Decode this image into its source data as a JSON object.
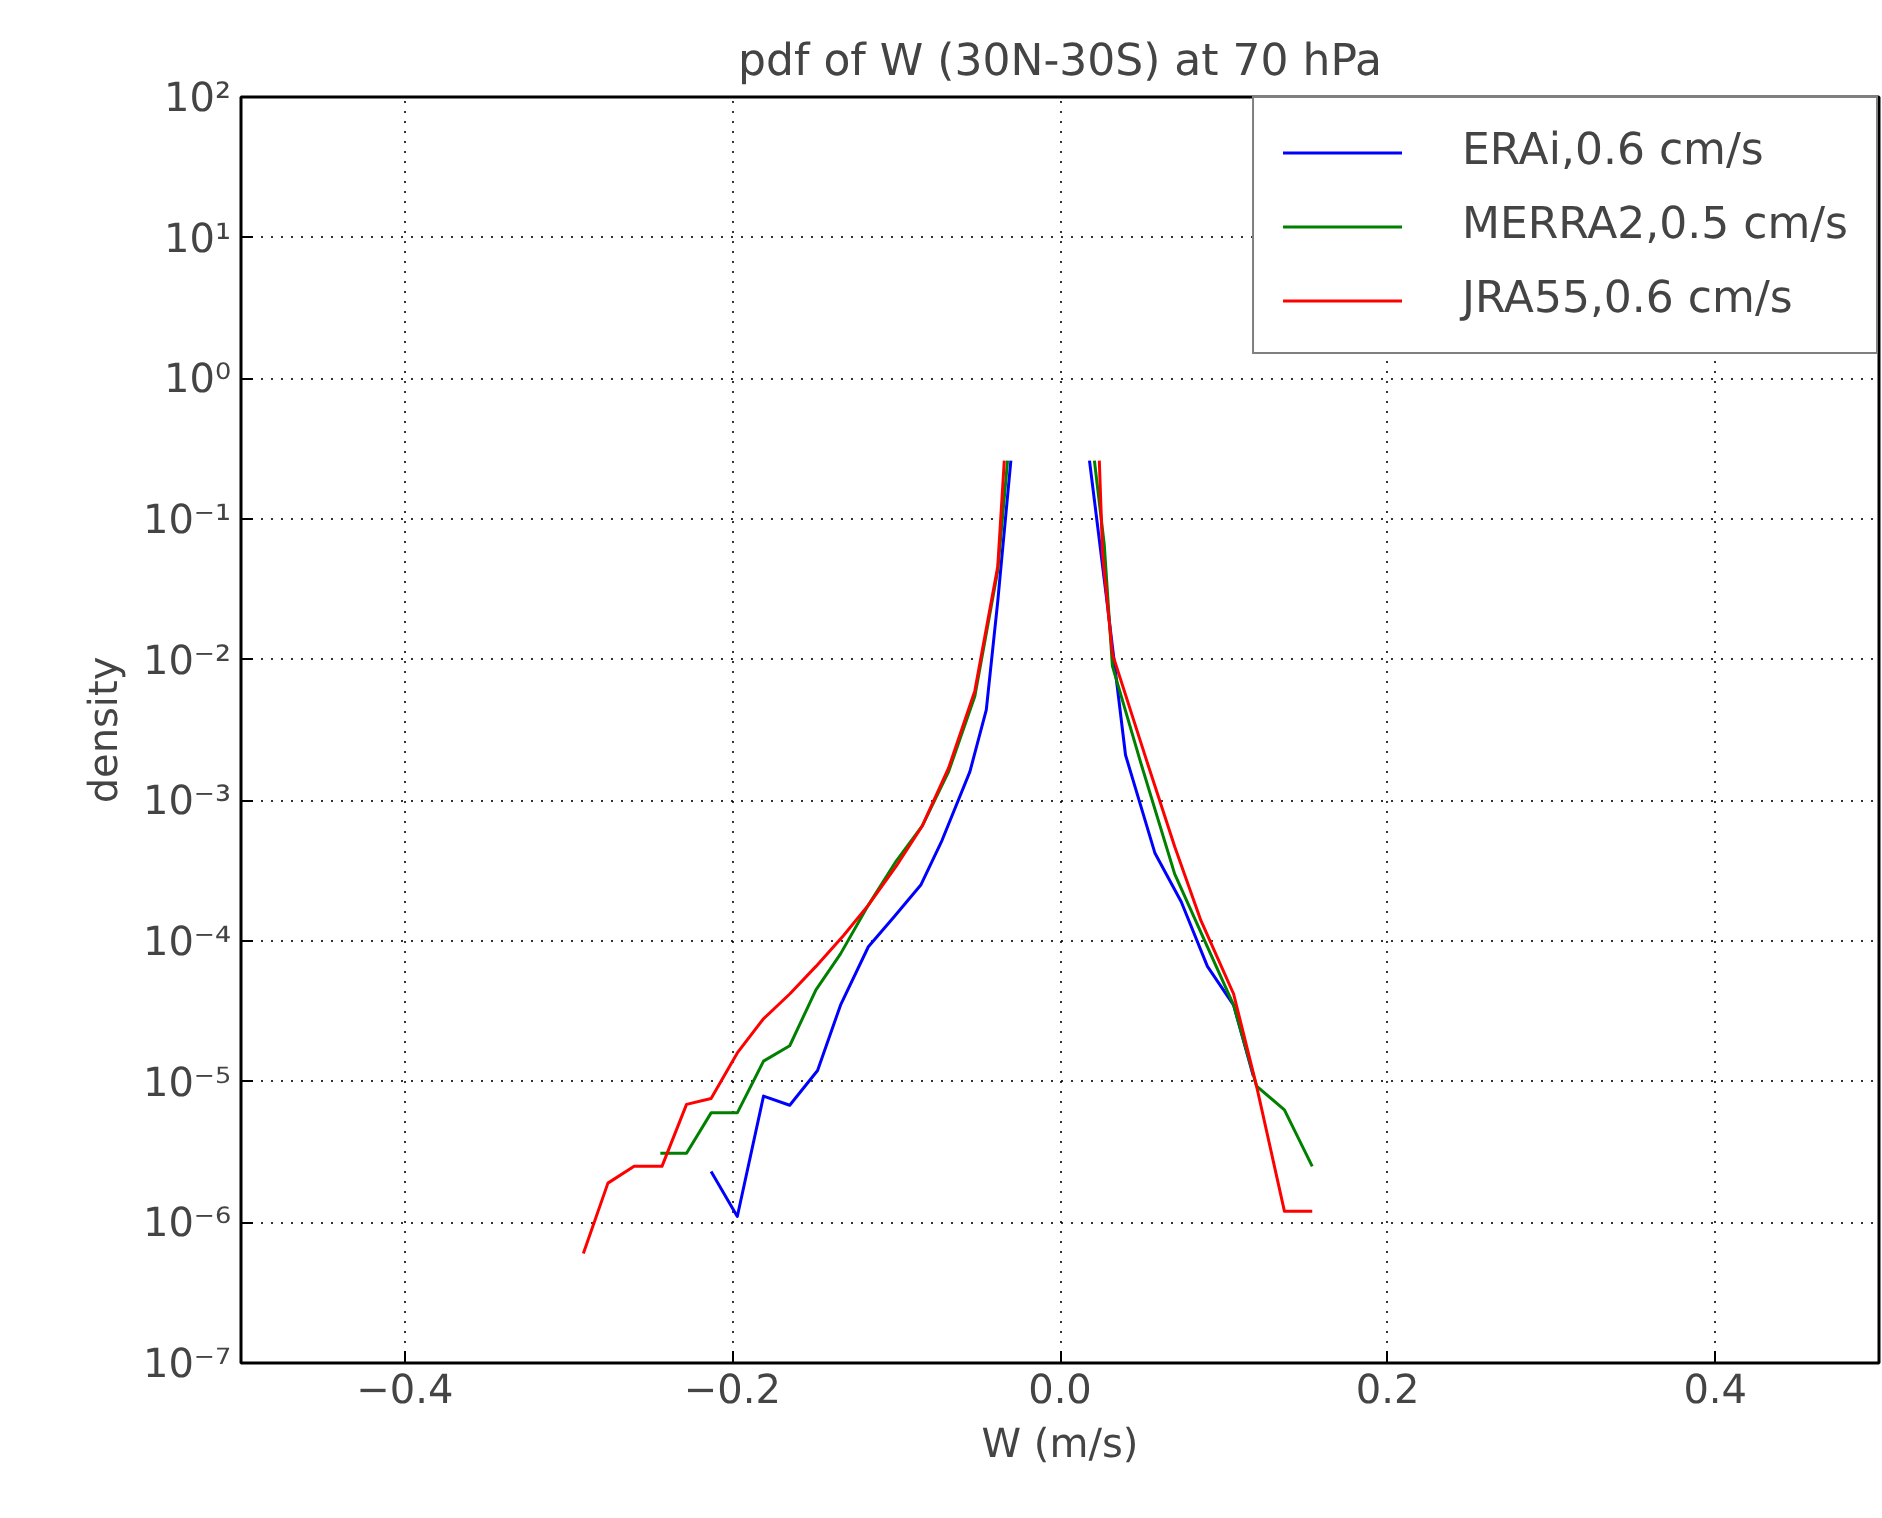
{
  "chart_data": {
    "type": "line",
    "title": "pdf of W (30N-30S) at 70 hPa",
    "xlabel": "W (m/s)",
    "ylabel": "density",
    "log": "y",
    "grid": true,
    "legend": "top right",
    "marker": "none",
    "line_style": "solid",
    "xlim": [
      -0.5,
      0.5
    ],
    "ylim": [
      1e-07,
      100
    ],
    "xticks": [
      {
        "value": -0.4,
        "label": "−0.4"
      },
      {
        "value": -0.2,
        "label": "−0.2"
      },
      {
        "value": 0,
        "label": "0.0"
      },
      {
        "value": 0.2,
        "label": "0.2"
      },
      {
        "value": 0.4,
        "label": "0.4"
      }
    ],
    "yticks": [
      {
        "value": 1e-07,
        "label": "10⁻⁷"
      },
      {
        "value": 1e-06,
        "label": "10⁻⁶"
      },
      {
        "value": 1e-05,
        "label": "10⁻⁵"
      },
      {
        "value": 0.0001,
        "label": "10⁻⁴"
      },
      {
        "value": 0.001,
        "label": "10⁻³"
      },
      {
        "value": 0.01,
        "label": "10⁻²"
      },
      {
        "value": 0.1,
        "label": "10⁻¹"
      },
      {
        "value": 1,
        "label": "10⁰"
      },
      {
        "value": 10,
        "label": "10¹"
      },
      {
        "value": 100,
        "label": "10²"
      }
    ],
    "series": [
      {
        "name": "ERAi,0.6 cm/s",
        "color": "#0000ff",
        "x": [
          -0.213,
          -0.197,
          -0.181,
          -0.165,
          -0.148,
          -0.134,
          -0.117,
          -0.101,
          -0.085,
          -0.072,
          -0.055,
          -0.045,
          -0.038,
          -0.03,
          0,
          0.018,
          0.028,
          0.04,
          0.058,
          0.074,
          0.09,
          0.106,
          0.118
        ],
        "values": [
          2.3e-06,
          1.1e-06,
          7.9e-06,
          6.8e-06,
          1.2e-05,
          3.5e-05,
          9.1e-05,
          0.00015,
          0.00025,
          0.00052,
          0.0016,
          0.0044,
          0.026,
          0.26,
          null,
          0.26,
          0.03,
          0.0021,
          0.00042,
          0.00019,
          6.6e-05,
          3.5e-05,
          1.1e-05
        ]
      },
      {
        "name": "MERRA2,0.5 cm/s",
        "color": "#008000",
        "x": [
          -0.244,
          -0.228,
          -0.213,
          -0.197,
          -0.181,
          -0.165,
          -0.149,
          -0.134,
          -0.117,
          -0.1,
          -0.084,
          -0.068,
          -0.052,
          -0.038,
          -0.032,
          0,
          0.021,
          0.027,
          0.032,
          0.049,
          0.07,
          0.09,
          0.106,
          0.12,
          0.137,
          0.154
        ],
        "values": [
          3.1e-06,
          3.1e-06,
          6e-06,
          6e-06,
          1.4e-05,
          1.8e-05,
          4.5e-05,
          8.1e-05,
          0.00018,
          0.00037,
          0.00066,
          0.0016,
          0.0055,
          0.043,
          0.26,
          null,
          0.26,
          0.066,
          0.009,
          0.0019,
          0.0003,
          9.1e-05,
          3.5e-05,
          9.3e-06,
          6.3e-06,
          2.5e-06
        ]
      },
      {
        "name": "JRA55,0.6 cm/s",
        "color": "#ff0000",
        "x": [
          -0.291,
          -0.276,
          -0.26,
          -0.243,
          -0.228,
          -0.213,
          -0.197,
          -0.181,
          -0.165,
          -0.149,
          -0.132,
          -0.117,
          -0.1,
          -0.084,
          -0.068,
          -0.052,
          -0.038,
          -0.034,
          0,
          0.024,
          0.026,
          0.032,
          0.053,
          0.07,
          0.086,
          0.106,
          0.12,
          0.137,
          0.154
        ],
        "values": [
          6e-07,
          1.9e-06,
          2.5e-06,
          2.5e-06,
          6.9e-06,
          7.6e-06,
          1.6e-05,
          2.8e-05,
          4.2e-05,
          6.6e-05,
          0.00011,
          0.00018,
          0.00034,
          0.00066,
          0.0017,
          0.006,
          0.046,
          0.26,
          null,
          0.26,
          0.056,
          0.011,
          0.0019,
          0.00047,
          0.00014,
          4.2e-05,
          9.3e-06,
          1.2e-06,
          1.2e-06
        ]
      }
    ]
  }
}
